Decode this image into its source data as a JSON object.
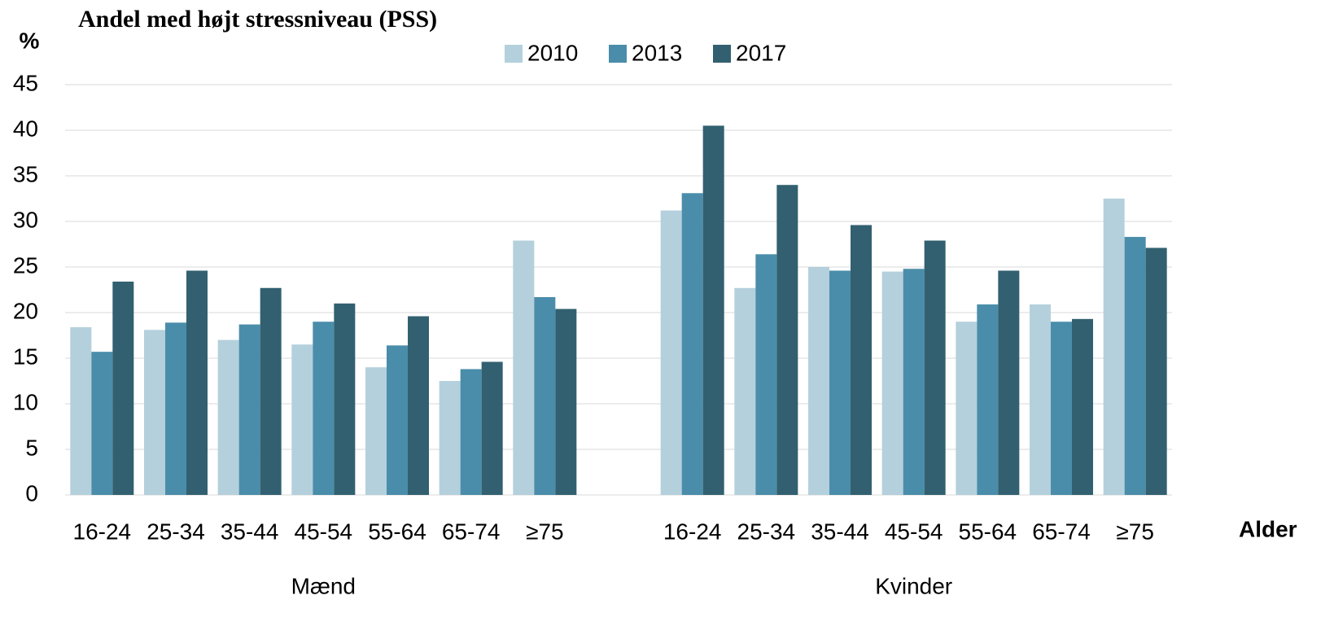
{
  "chart_data": {
    "type": "bar",
    "title": "Andel med højt stressniveau (PSS)",
    "y_label": "%",
    "x_label": "Alder",
    "categories": [
      "16-24",
      "25-34",
      "35-44",
      "45-54",
      "55-64",
      "65-74",
      "≥75",
      null,
      "16-24",
      "25-34",
      "35-44",
      "45-54",
      "55-64",
      "65-74",
      "≥75"
    ],
    "group_labels": [
      "Mænd",
      "Kvinder"
    ],
    "series": [
      {
        "name": "2010",
        "color": "#b4d0dc",
        "values": [
          18.4,
          18.1,
          17.0,
          16.5,
          14.0,
          12.5,
          27.9,
          null,
          31.2,
          22.7,
          25.0,
          24.5,
          19.0,
          20.9,
          32.5
        ]
      },
      {
        "name": "2013",
        "color": "#4a8daa",
        "values": [
          15.7,
          18.9,
          18.7,
          19.0,
          16.4,
          13.8,
          21.7,
          null,
          33.1,
          26.4,
          24.6,
          24.8,
          20.9,
          19.0,
          28.3
        ]
      },
      {
        "name": "2017",
        "color": "#326070",
        "values": [
          23.4,
          24.6,
          22.7,
          21.0,
          19.6,
          14.6,
          20.4,
          null,
          40.5,
          34.0,
          29.6,
          27.9,
          24.6,
          19.3,
          27.1
        ]
      }
    ],
    "ylim": [
      0,
      45
    ],
    "yticks": [
      0,
      5,
      10,
      15,
      20,
      25,
      30,
      35,
      40,
      45
    ],
    "grid": true,
    "legend": "top"
  }
}
